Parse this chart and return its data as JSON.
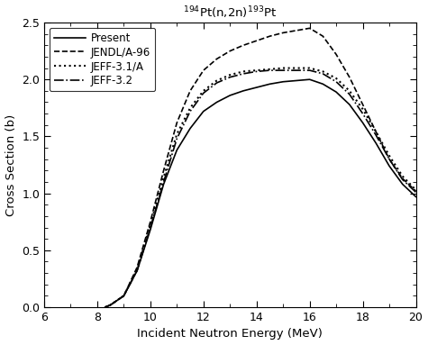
{
  "title": "$^{194}$Pt(n,2n)$^{193}$Pt",
  "xlabel": "Incident Neutron Energy (MeV)",
  "ylabel": "Cross Section (b)",
  "xlim": [
    6,
    20
  ],
  "ylim": [
    0.0,
    2.5
  ],
  "xticks": [
    6,
    8,
    10,
    12,
    14,
    16,
    18,
    20
  ],
  "yticks": [
    0.0,
    0.5,
    1.0,
    1.5,
    2.0,
    2.5
  ],
  "series": {
    "Present": {
      "linestyle": "solid",
      "linewidth": 1.2,
      "color": "black",
      "x": [
        8.3,
        8.5,
        9.0,
        9.5,
        10.0,
        10.5,
        11.0,
        11.5,
        12.0,
        12.5,
        13.0,
        13.5,
        14.0,
        14.5,
        15.0,
        15.5,
        16.0,
        16.5,
        17.0,
        17.5,
        18.0,
        18.5,
        19.0,
        19.5,
        20.0
      ],
      "y": [
        0.0,
        0.02,
        0.1,
        0.32,
        0.68,
        1.08,
        1.38,
        1.57,
        1.72,
        1.8,
        1.86,
        1.9,
        1.93,
        1.96,
        1.98,
        1.99,
        2.0,
        1.96,
        1.89,
        1.78,
        1.62,
        1.44,
        1.24,
        1.08,
        0.97
      ]
    },
    "JENDL/A-96": {
      "linestyle": "dashed",
      "linewidth": 1.2,
      "color": "black",
      "x": [
        8.3,
        8.5,
        9.0,
        9.5,
        10.0,
        10.5,
        11.0,
        11.5,
        12.0,
        12.5,
        13.0,
        13.5,
        14.0,
        14.5,
        15.0,
        15.5,
        16.0,
        16.5,
        17.0,
        17.5,
        18.0,
        18.5,
        19.0,
        19.5,
        20.0
      ],
      "y": [
        0.0,
        0.02,
        0.1,
        0.35,
        0.75,
        1.2,
        1.62,
        1.9,
        2.08,
        2.18,
        2.25,
        2.3,
        2.34,
        2.38,
        2.41,
        2.43,
        2.45,
        2.38,
        2.22,
        2.02,
        1.78,
        1.54,
        1.3,
        1.13,
        1.02
      ]
    },
    "JEFF-3.1/A": {
      "linestyle": "dotted",
      "linewidth": 1.5,
      "color": "black",
      "x": [
        8.3,
        8.5,
        9.0,
        9.5,
        10.0,
        10.5,
        11.0,
        11.5,
        12.0,
        12.5,
        13.0,
        13.5,
        14.0,
        14.5,
        15.0,
        15.5,
        16.0,
        16.5,
        17.0,
        17.5,
        18.0,
        18.5,
        19.0,
        19.5,
        20.0
      ],
      "y": [
        0.0,
        0.02,
        0.1,
        0.33,
        0.72,
        1.14,
        1.52,
        1.75,
        1.9,
        1.99,
        2.04,
        2.07,
        2.08,
        2.09,
        2.1,
        2.1,
        2.1,
        2.07,
        2.01,
        1.9,
        1.74,
        1.54,
        1.33,
        1.15,
        1.03
      ]
    },
    "JEFF-3.2": {
      "linestyle": "dashdot",
      "linewidth": 1.2,
      "color": "black",
      "x": [
        8.3,
        8.5,
        9.0,
        9.5,
        10.0,
        10.5,
        11.0,
        11.5,
        12.0,
        12.5,
        13.0,
        13.5,
        14.0,
        14.5,
        15.0,
        15.5,
        16.0,
        16.5,
        17.0,
        17.5,
        18.0,
        18.5,
        19.0,
        19.5,
        20.0
      ],
      "y": [
        0.0,
        0.02,
        0.1,
        0.32,
        0.7,
        1.1,
        1.48,
        1.72,
        1.88,
        1.97,
        2.02,
        2.05,
        2.07,
        2.08,
        2.08,
        2.08,
        2.08,
        2.05,
        1.98,
        1.87,
        1.7,
        1.51,
        1.3,
        1.12,
        1.01
      ]
    }
  },
  "legend_loc": "upper left",
  "background_color": "#ffffff"
}
